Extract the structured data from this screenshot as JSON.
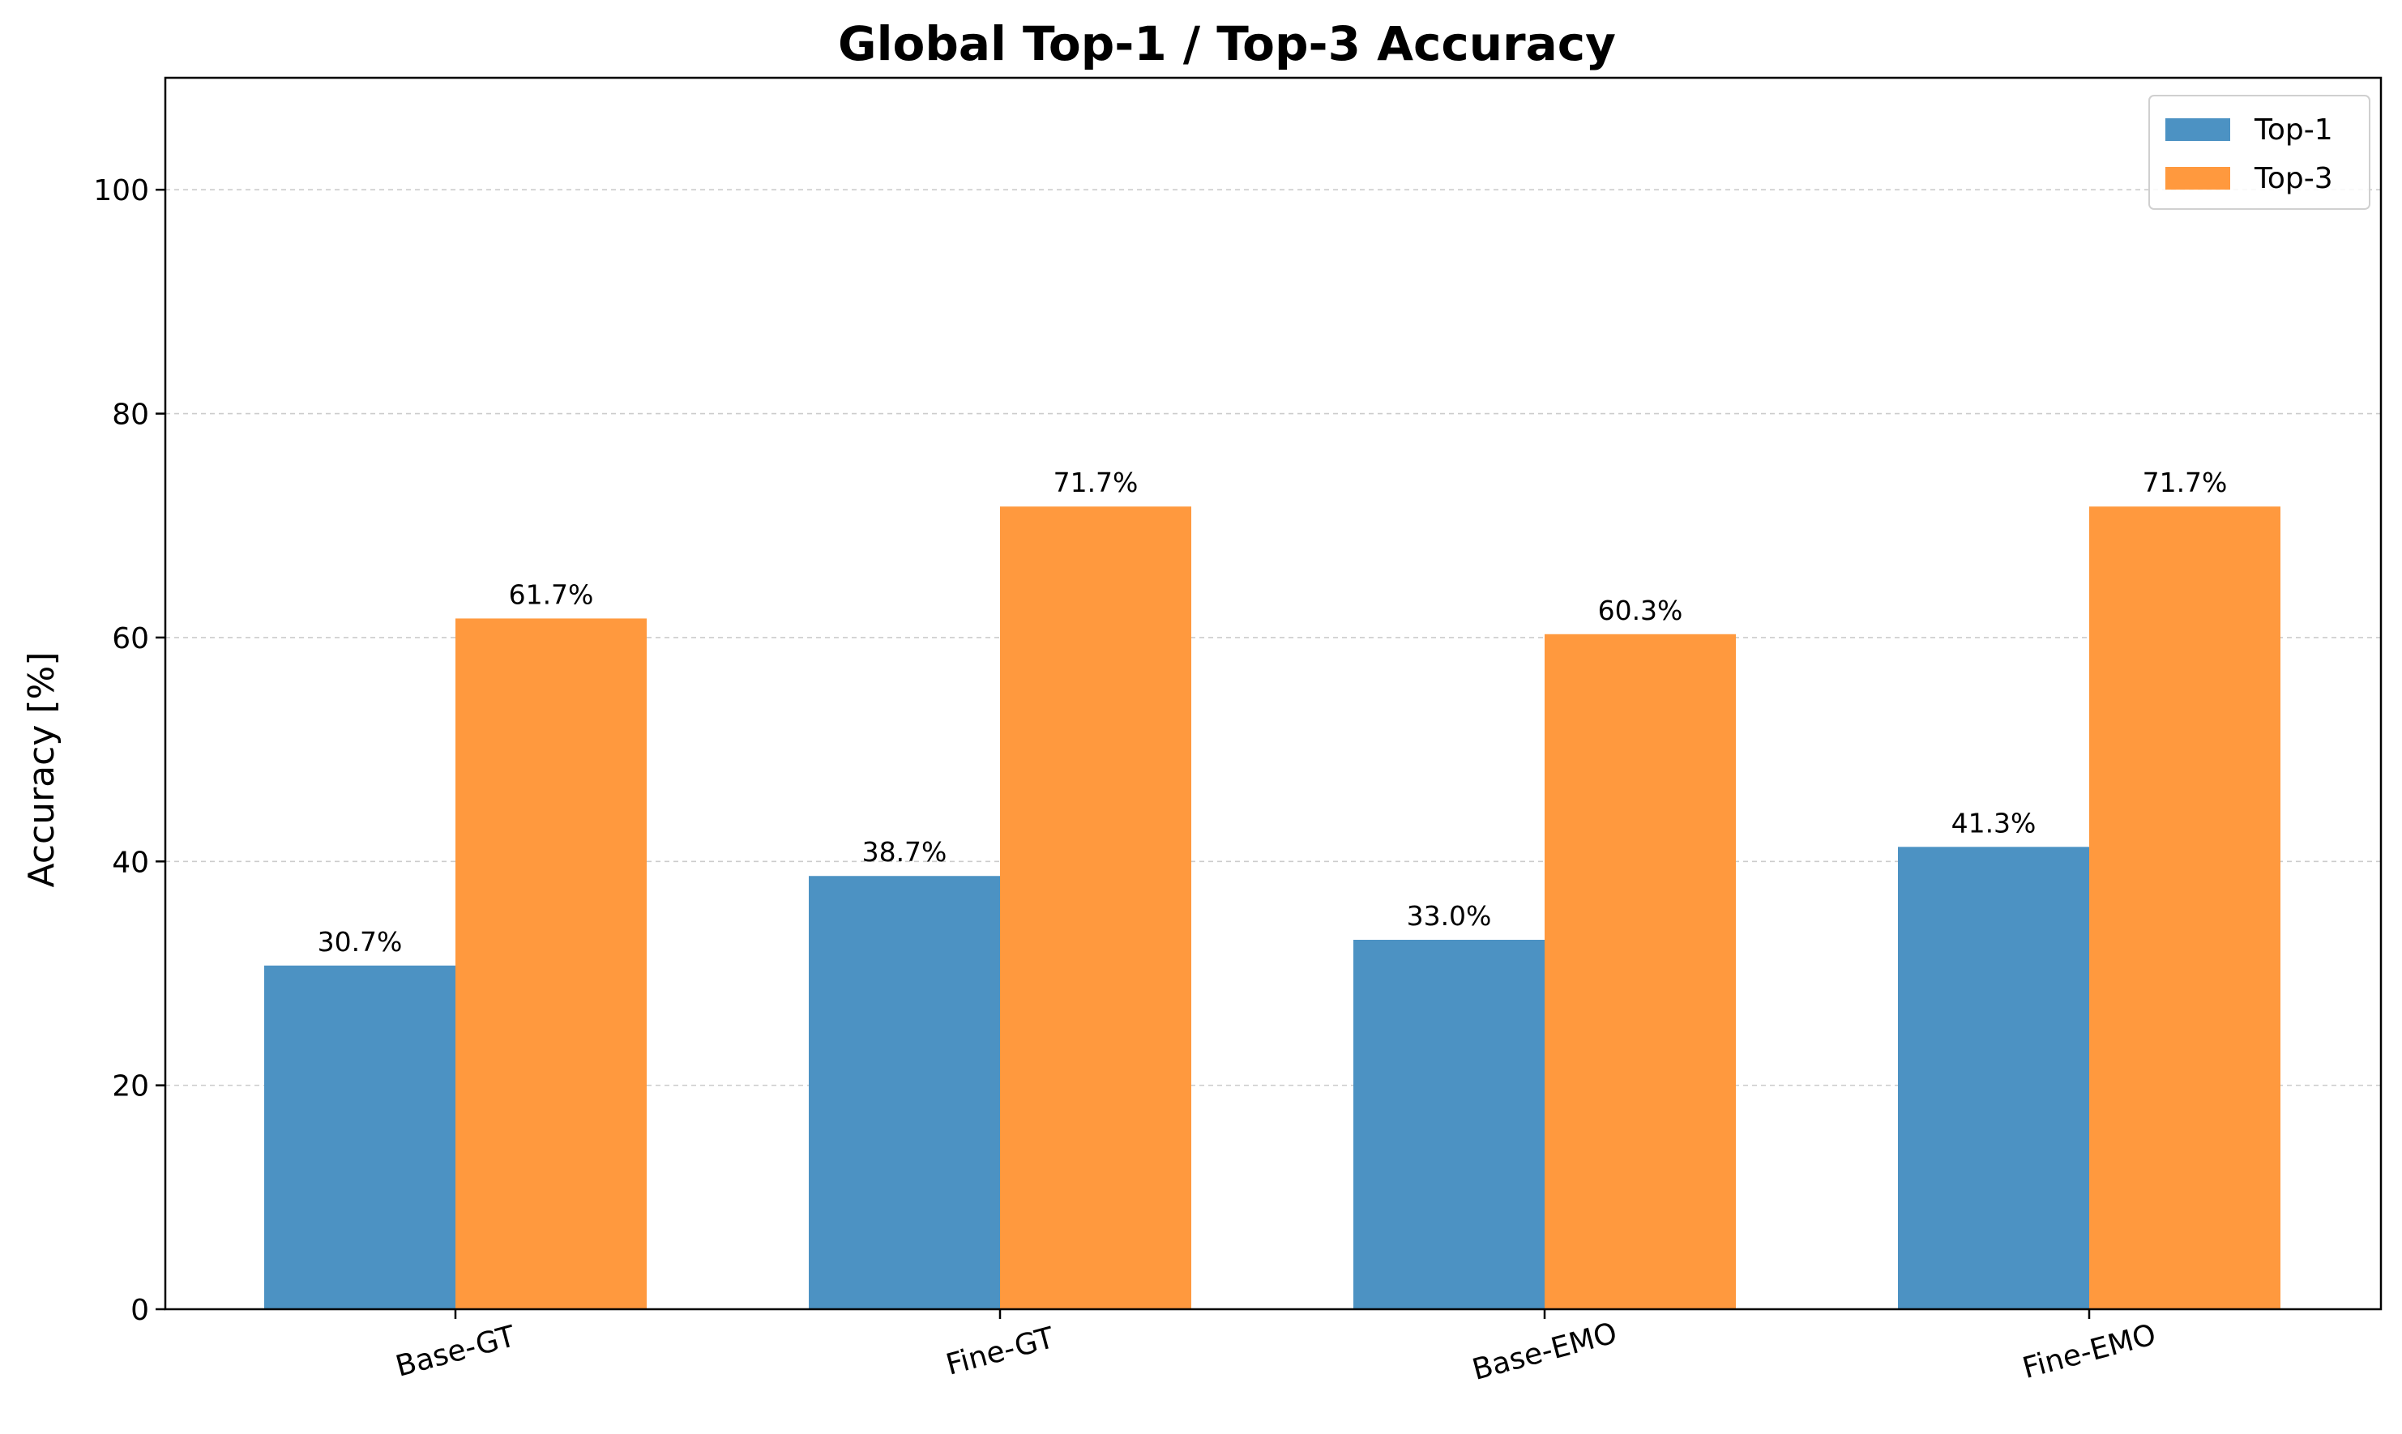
{
  "chart_data": {
    "type": "bar",
    "title": "Global Top-1 / Top-3 Accuracy",
    "xlabel": "",
    "ylabel": "Accuracy [%]",
    "ylim": [
      0,
      110
    ],
    "yticks": [
      0,
      20,
      40,
      60,
      80,
      100
    ],
    "categories": [
      "Base-GT",
      "Fine-GT",
      "Base-EMO",
      "Fine-EMO"
    ],
    "series": [
      {
        "name": "Top-1",
        "color": "#4C92C3",
        "values": [
          30.7,
          38.7,
          33.0,
          41.3
        ],
        "labels": [
          "30.7%",
          "38.7%",
          "33.0%",
          "41.3%"
        ]
      },
      {
        "name": "Top-3",
        "color": "#FF993E",
        "values": [
          61.7,
          71.7,
          60.3,
          71.7
        ],
        "labels": [
          "61.7%",
          "71.7%",
          "60.3%",
          "71.7%"
        ]
      }
    ],
    "grid": "y-dashed",
    "legend": "top-right"
  }
}
